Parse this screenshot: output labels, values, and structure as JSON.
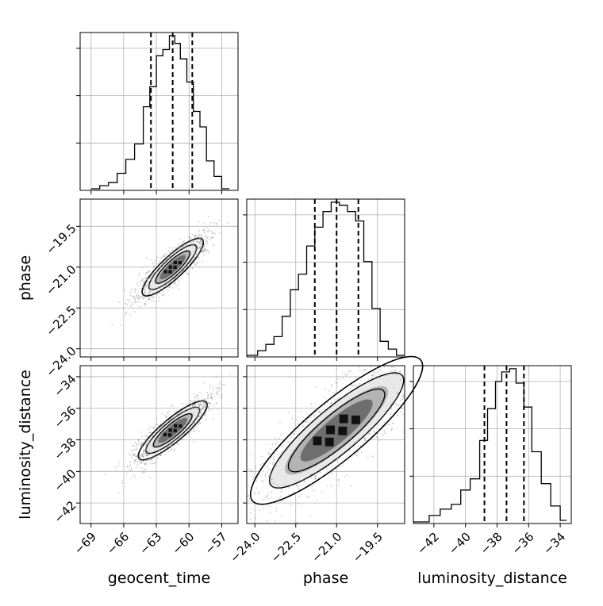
{
  "chart_data": {
    "type": "corner",
    "parameters": [
      "geocent_time",
      "phase",
      "luminosity_distance"
    ],
    "axis_labels": {
      "x": [
        "geocent_time",
        "phase",
        "luminosity_distance"
      ],
      "y": [
        "phase",
        "luminosity_distance"
      ]
    },
    "grid": true,
    "colors": {
      "line": "#000000",
      "grid": "#b0b0b0",
      "points": "#888888"
    },
    "ranges": {
      "geocent_time": [
        -70,
        -55.5
      ],
      "phase": [
        -24.3,
        -18.5
      ],
      "luminosity_distance": [
        -43.3,
        -33.3
      ]
    },
    "ticks": {
      "geocent_time": {
        "values": [
          -69,
          -66,
          -63,
          -60,
          -57
        ],
        "labels": [
          "−69",
          "−66",
          "−63",
          "−60",
          "−57"
        ]
      },
      "phase": {
        "values": [
          -24.0,
          -22.5,
          -21.0,
          -19.5
        ],
        "labels": [
          "−24.0",
          "−22.5",
          "−21.0",
          "−19.5"
        ]
      },
      "luminosity_distance": {
        "values": [
          -42,
          -40,
          -38,
          -36,
          -34
        ],
        "labels": [
          "−42",
          "−40",
          "−38",
          "−36",
          "−34"
        ]
      }
    },
    "quantiles": {
      "geocent_time": [
        -63.5,
        -61.5,
        -59.7
      ],
      "phase": [
        -21.8,
        -21.0,
        -20.2
      ],
      "luminosity_distance": [
        -38.8,
        -37.4,
        -36.3
      ]
    },
    "histograms": {
      "geocent_time": {
        "edges": [
          -69.0,
          -68.2,
          -67.4,
          -66.6,
          -65.8,
          -65.0,
          -64.2,
          -63.6,
          -63.0,
          -62.4,
          -61.8,
          -61.3,
          -60.8,
          -60.2,
          -59.6,
          -59.0,
          -58.4,
          -57.7,
          -57.0,
          -56.3
        ],
        "counts": [
          1,
          3,
          5,
          11,
          20,
          30,
          54,
          67,
          87,
          91,
          100,
          95,
          85,
          70,
          51,
          41,
          19,
          9,
          1
        ]
      },
      "phase": {
        "edges": [
          -24.3,
          -23.9,
          -23.6,
          -23.3,
          -23.0,
          -22.7,
          -22.4,
          -22.1,
          -21.8,
          -21.5,
          -21.2,
          -20.9,
          -20.6,
          -20.3,
          -20.0,
          -19.7,
          -19.4,
          -19.1,
          -18.8,
          -18.5
        ],
        "counts": [
          1,
          4,
          8,
          13,
          26,
          43,
          53,
          71,
          83,
          93,
          99,
          97,
          93,
          87,
          61,
          31,
          10,
          5,
          1
        ]
      },
      "luminosity_distance": {
        "edges": [
          -43.3,
          -42.3,
          -41.6,
          -40.9,
          -40.3,
          -39.7,
          -39.1,
          -38.6,
          -38.1,
          -37.7,
          -37.2,
          -36.8,
          -36.3,
          -35.8,
          -35.2,
          -34.6,
          -34.0,
          -33.6
        ],
        "counts": [
          1,
          5,
          9,
          12,
          21,
          28,
          52,
          72,
          89,
          95,
          97,
          88,
          73,
          45,
          25,
          11,
          2
        ]
      }
    },
    "panels_2d": [
      {
        "x": "geocent_time",
        "y": "phase",
        "center": [
          -61.5,
          -21.0
        ],
        "axis_extent": [
          6.0,
          1.65
        ],
        "angle_deg": 43
      },
      {
        "x": "geocent_time",
        "y": "luminosity_distance",
        "center": [
          -61.5,
          -37.4
        ],
        "axis_extent": [
          6.5,
          1.7
        ],
        "angle_deg": 40
      },
      {
        "x": "phase",
        "y": "luminosity_distance",
        "center": [
          -21.0,
          -37.4
        ],
        "axis_extent": [
          6.5,
          1.7
        ],
        "angle_deg": 40
      }
    ]
  }
}
